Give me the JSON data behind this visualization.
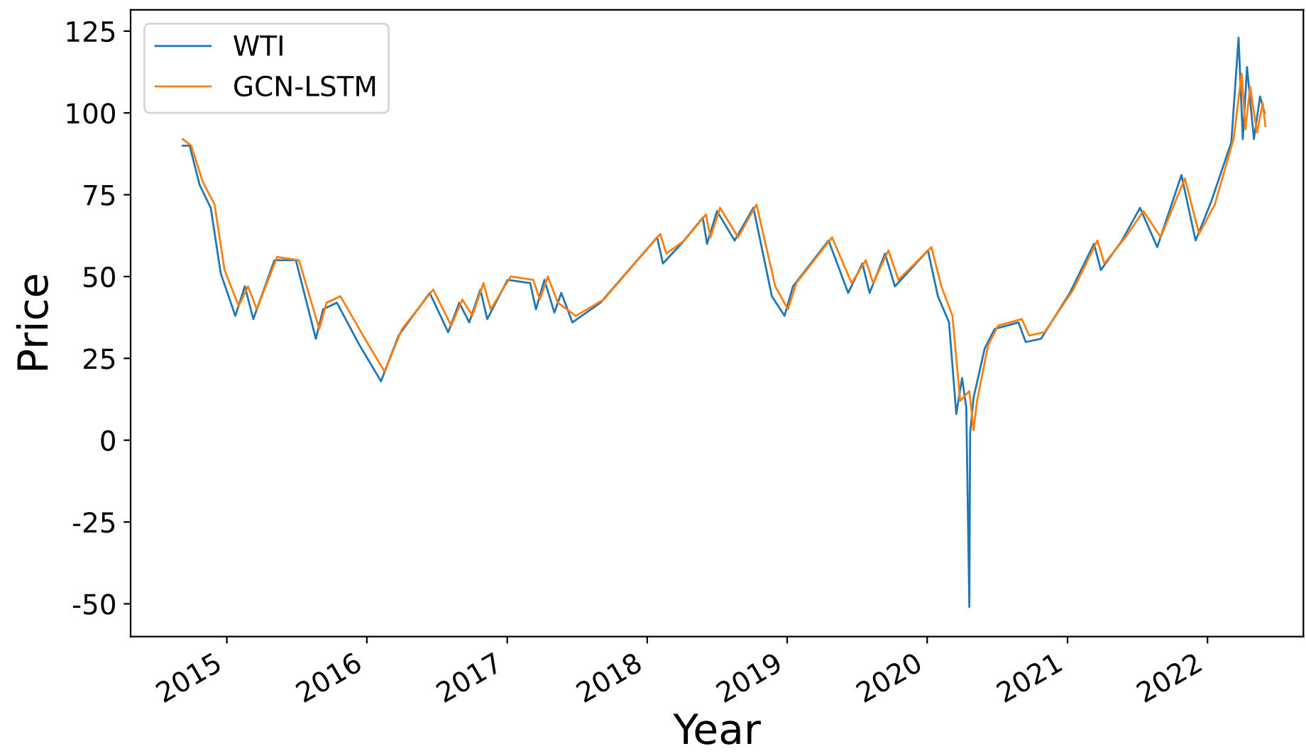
{
  "chart_data": {
    "type": "line",
    "xlabel": "Year",
    "ylabel": "Price",
    "xlim": [
      "2014-04-25",
      "2022-09-08"
    ],
    "ylim": [
      -60,
      131.5
    ],
    "xticks": [
      {
        "value": "2015-01-01",
        "label": "2015"
      },
      {
        "value": "2016-01-01",
        "label": "2016"
      },
      {
        "value": "2017-01-01",
        "label": "2017"
      },
      {
        "value": "2018-01-01",
        "label": "2018"
      },
      {
        "value": "2019-01-01",
        "label": "2019"
      },
      {
        "value": "2020-01-01",
        "label": "2020"
      },
      {
        "value": "2021-01-01",
        "label": "2021"
      },
      {
        "value": "2022-01-01",
        "label": "2022"
      }
    ],
    "yticks": [
      -50,
      -25,
      0,
      25,
      50,
      75,
      100,
      125
    ],
    "grid": false,
    "legend": "top left",
    "marker": "none",
    "line_style": "solid",
    "series": [
      {
        "name": "WTI",
        "color": "#1f77b4",
        "x": [
          "2014-09-08",
          "2014-09-26",
          "2014-10-22",
          "2014-11-20",
          "2014-12-16",
          "2015-01-23",
          "2015-02-17",
          "2015-03-11",
          "2015-05-05",
          "2015-06-30",
          "2015-08-21",
          "2015-09-09",
          "2015-10-15",
          "2015-12-13",
          "2016-02-07",
          "2016-03-24",
          "2016-06-13",
          "2016-07-31",
          "2016-08-29",
          "2016-09-24",
          "2016-10-23",
          "2016-11-10",
          "2017-01-02",
          "2017-03-02",
          "2017-03-17",
          "2017-04-08",
          "2017-05-04",
          "2017-05-22",
          "2017-06-20",
          "2017-09-01",
          "2017-11-14",
          "2018-01-27",
          "2018-02-11",
          "2018-03-31",
          "2018-05-26",
          "2018-06-06",
          "2018-07-02",
          "2018-08-17",
          "2018-10-05",
          "2018-11-22",
          "2018-12-25",
          "2019-01-16",
          "2019-04-19",
          "2019-06-09",
          "2019-07-16",
          "2019-08-04",
          "2019-09-13",
          "2019-10-09",
          "2020-01-03",
          "2020-01-29",
          "2020-02-27",
          "2020-03-17",
          "2020-04-01",
          "2020-04-12",
          "2020-04-20",
          "2020-04-22",
          "2020-05-01",
          "2020-05-30",
          "2020-06-25",
          "2020-08-26",
          "2020-09-14",
          "2020-10-24",
          "2021-01-07",
          "2021-03-11",
          "2021-03-29",
          "2021-05-23",
          "2021-07-09",
          "2021-08-23",
          "2021-10-25",
          "2021-12-01",
          "2022-01-11",
          "2022-03-04",
          "2022-03-23",
          "2022-04-03",
          "2022-04-14",
          "2022-05-02",
          "2022-05-18",
          "2022-05-30"
        ],
        "values": [
          90,
          90,
          78,
          71,
          51,
          38,
          47,
          37,
          55,
          55,
          31,
          40,
          42,
          29,
          18,
          32,
          45,
          33,
          42,
          36,
          46,
          37,
          49,
          48,
          40,
          49,
          39,
          45,
          36,
          42,
          52,
          62,
          54,
          60,
          68,
          60,
          70,
          61,
          71,
          44,
          38,
          47,
          61,
          45,
          54,
          45,
          57,
          47,
          58,
          44,
          36,
          8,
          19,
          10,
          -51,
          2,
          13,
          28,
          34,
          36,
          30,
          31,
          45,
          60,
          52,
          61,
          71,
          59,
          81,
          61,
          73,
          91,
          123,
          92,
          114,
          92,
          105,
          100
        ]
      },
      {
        "name": "GCN-LSTM",
        "color": "#ff7f0e",
        "x": [
          "2014-09-08",
          "2014-09-30",
          "2014-10-30",
          "2014-11-30",
          "2014-12-26",
          "2015-02-01",
          "2015-02-25",
          "2015-03-20",
          "2015-05-12",
          "2015-07-08",
          "2015-08-30",
          "2015-09-18",
          "2015-10-24",
          "2015-12-22",
          "2016-02-16",
          "2016-04-02",
          "2016-06-22",
          "2016-08-08",
          "2016-09-06",
          "2016-10-02",
          "2016-10-31",
          "2016-11-19",
          "2017-01-10",
          "2017-03-10",
          "2017-03-27",
          "2017-04-17",
          "2017-05-13",
          "2017-06-29",
          "2017-09-10",
          "2017-11-22",
          "2018-02-04",
          "2018-02-20",
          "2018-04-08",
          "2018-06-03",
          "2018-06-15",
          "2018-07-10",
          "2018-08-26",
          "2018-10-13",
          "2018-12-01",
          "2019-01-03",
          "2019-01-25",
          "2019-04-28",
          "2019-06-18",
          "2019-07-25",
          "2019-08-13",
          "2019-09-22",
          "2019-10-18",
          "2020-01-12",
          "2020-02-07",
          "2020-03-07",
          "2020-03-27",
          "2020-04-20",
          "2020-05-01",
          "2020-05-10",
          "2020-06-08",
          "2020-07-04",
          "2020-09-04",
          "2020-09-23",
          "2020-11-02",
          "2021-01-16",
          "2021-03-20",
          "2021-04-07",
          "2021-06-01",
          "2021-07-18",
          "2021-09-01",
          "2021-11-03",
          "2021-12-10",
          "2022-01-20",
          "2022-03-10",
          "2022-03-31",
          "2022-04-10",
          "2022-04-22",
          "2022-05-10",
          "2022-05-25",
          "2022-06-01"
        ],
        "values": [
          92,
          90,
          79,
          72,
          52,
          41,
          47,
          40,
          56,
          55,
          34,
          42,
          44,
          32,
          21,
          34,
          46,
          35,
          43,
          38,
          48,
          40,
          50,
          49,
          43,
          50,
          42,
          38,
          43,
          53,
          63,
          57,
          61,
          69,
          62,
          71,
          62,
          72,
          47,
          40,
          48,
          62,
          48,
          55,
          48,
          58,
          49,
          59,
          47,
          38,
          12,
          15,
          3,
          12,
          29,
          35,
          37,
          32,
          33,
          46,
          61,
          54,
          62,
          70,
          62,
          80,
          63,
          72,
          92,
          112,
          95,
          108,
          94,
          103,
          96
        ]
      }
    ]
  }
}
